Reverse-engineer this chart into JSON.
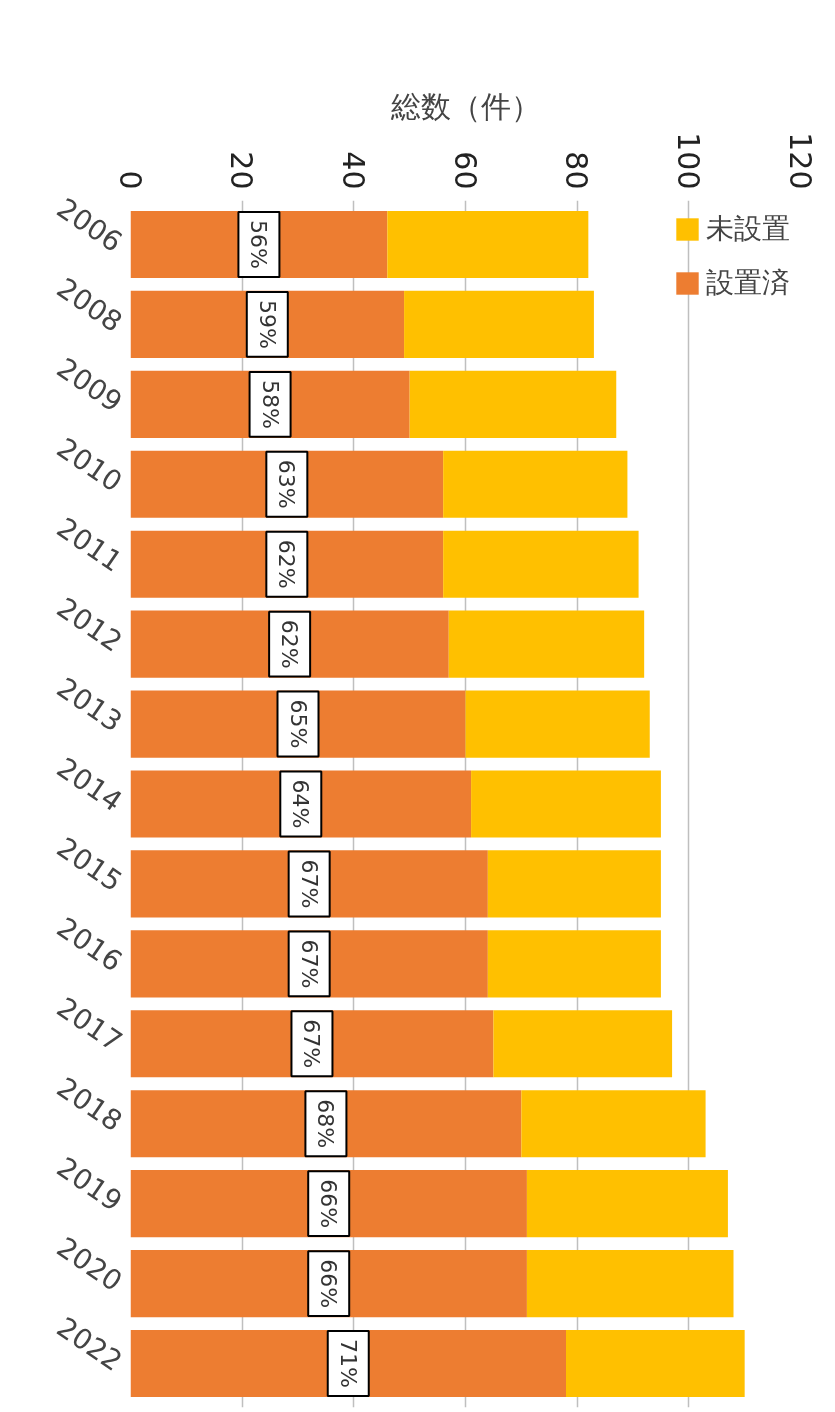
{
  "chart_data": {
    "type": "bar",
    "orientation": "horizontal",
    "stacked": true,
    "xlabel": "総数（件）",
    "categories": [
      "2006",
      "2008",
      "2009",
      "2010",
      "2011",
      "2012",
      "2013",
      "2014",
      "2015",
      "2016",
      "2017",
      "2018",
      "2019",
      "2020",
      "2022"
    ],
    "series": [
      {
        "name": "設置済",
        "color": "#ed7d31",
        "values": [
          46,
          49,
          50,
          56,
          56,
          57,
          60,
          61,
          64,
          64,
          65,
          70,
          71,
          71,
          78
        ]
      },
      {
        "name": "未設置",
        "color": "#ffc000",
        "values": [
          36,
          34,
          37,
          33,
          35,
          35,
          33,
          34,
          31,
          31,
          32,
          33,
          36,
          37,
          32
        ]
      }
    ],
    "annotations": [
      "56%",
      "59%",
      "58%",
      "63%",
      "62%",
      "62%",
      "65%",
      "64%",
      "67%",
      "67%",
      "67%",
      "68%",
      "66%",
      "66%",
      "71%"
    ],
    "xlim": [
      0,
      120
    ],
    "xticks": [
      0,
      20,
      40,
      60,
      80,
      100,
      120
    ],
    "grid": "x",
    "legend": "top right"
  }
}
